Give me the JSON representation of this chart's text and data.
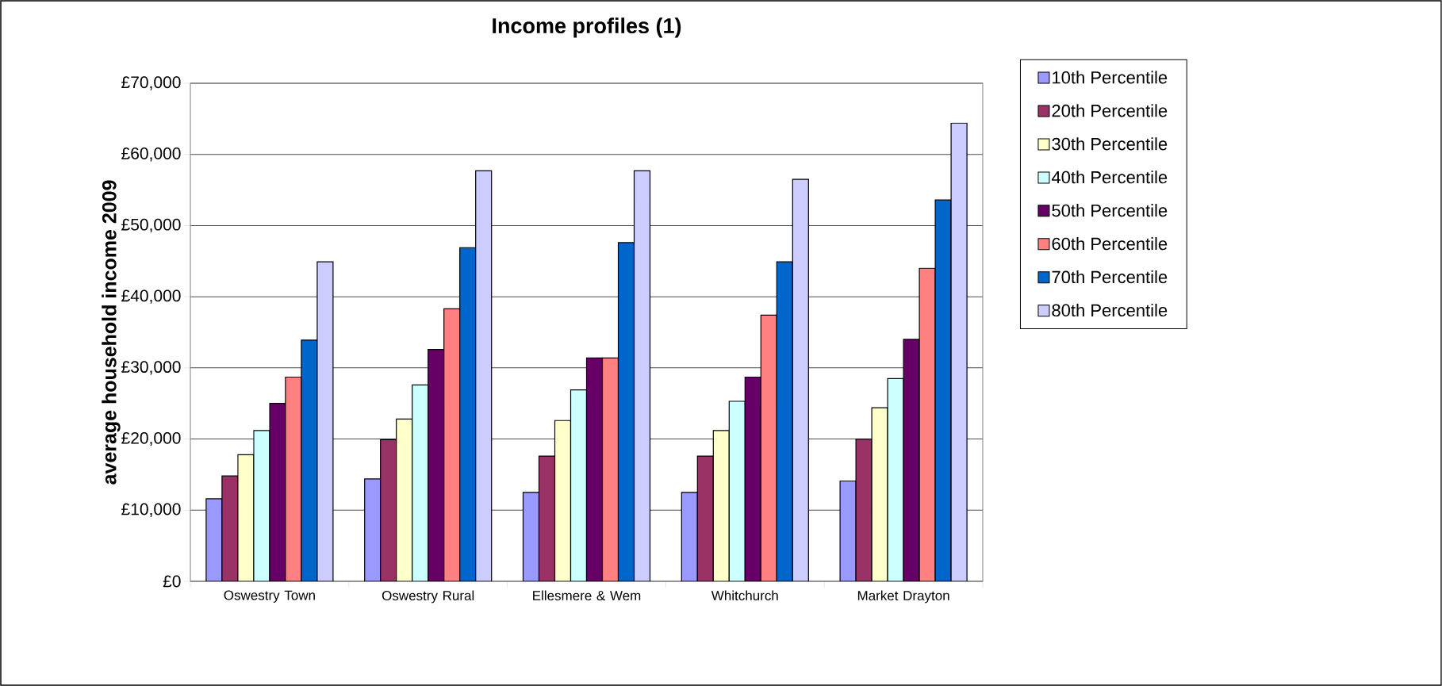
{
  "chart_data": {
    "type": "bar",
    "title": "Income profiles (1)",
    "ylabel": "average household income 2009",
    "categories": [
      "Oswestry Town",
      "Oswestry Rural",
      "Ellesmere & Wem",
      "Whitchurch",
      "Market Drayton"
    ],
    "series": [
      {
        "name": "10th Percentile",
        "color": "#9999ff",
        "values": [
          11600,
          14400,
          12500,
          12500,
          14100
        ]
      },
      {
        "name": "20th Percentile",
        "color": "#993366",
        "values": [
          14800,
          19900,
          17600,
          17600,
          20000
        ]
      },
      {
        "name": "30th Percentile",
        "color": "#ffffcc",
        "values": [
          17800,
          22800,
          22600,
          21200,
          24400
        ]
      },
      {
        "name": "40th Percentile",
        "color": "#ccffff",
        "values": [
          21200,
          27600,
          26900,
          25300,
          28500
        ]
      },
      {
        "name": "50th Percentile",
        "color": "#660066",
        "values": [
          25000,
          32600,
          31400,
          28700,
          34000
        ]
      },
      {
        "name": "60th Percentile",
        "color": "#ff8080",
        "values": [
          28700,
          38300,
          31400,
          37400,
          44000
        ]
      },
      {
        "name": "70th Percentile",
        "color": "#0066cc",
        "values": [
          33900,
          46900,
          47600,
          44900,
          53600
        ]
      },
      {
        "name": "80th Percentile",
        "color": "#ccccff",
        "values": [
          44900,
          57700,
          57700,
          56500,
          64400
        ]
      }
    ],
    "ylim": [
      0,
      70000
    ],
    "yticks": [
      {
        "value": 0,
        "label": "£0"
      },
      {
        "value": 10000,
        "label": "£10,000"
      },
      {
        "value": 20000,
        "label": "£20,000"
      },
      {
        "value": 30000,
        "label": "£30,000"
      },
      {
        "value": 40000,
        "label": "£40,000"
      },
      {
        "value": 50000,
        "label": "£50,000"
      },
      {
        "value": 60000,
        "label": "£60,000"
      },
      {
        "value": 70000,
        "label": "£70,000"
      }
    ],
    "grid": "y",
    "legend": "right"
  }
}
